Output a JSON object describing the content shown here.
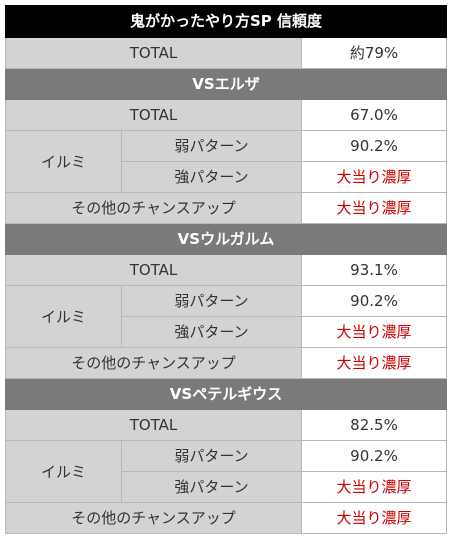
{
  "title": "鬼がかったやり方SP 信頼度",
  "overall": {
    "label": "TOTAL",
    "value": "約79%"
  },
  "colors": {
    "title_bg": "#000000",
    "section_bg": "#7a7a7a",
    "label_bg": "#d3d3d3",
    "value_bg": "#ffffff",
    "highlight_text": "#cc0000"
  },
  "sections": [
    {
      "header": "VSエルザ",
      "total_label": "TOTAL",
      "total_value": "67.0%",
      "group_label": "イルミ",
      "weak_label": "弱パターン",
      "weak_value": "90.2%",
      "strong_label": "強パターン",
      "strong_value": "大当り濃厚",
      "other_label": "その他のチャンスアップ",
      "other_value": "大当り濃厚"
    },
    {
      "header": "VSウルガルム",
      "total_label": "TOTAL",
      "total_value": "93.1%",
      "group_label": "イルミ",
      "weak_label": "弱パターン",
      "weak_value": "90.2%",
      "strong_label": "強パターン",
      "strong_value": "大当り濃厚",
      "other_label": "その他のチャンスアップ",
      "other_value": "大当り濃厚"
    },
    {
      "header": "VSペテルギウス",
      "total_label": "TOTAL",
      "total_value": "82.5%",
      "group_label": "イルミ",
      "weak_label": "弱パターン",
      "weak_value": "90.2%",
      "strong_label": "強パターン",
      "strong_value": "大当り濃厚",
      "other_label": "その他のチャンスアップ",
      "other_value": "大当り濃厚"
    }
  ]
}
